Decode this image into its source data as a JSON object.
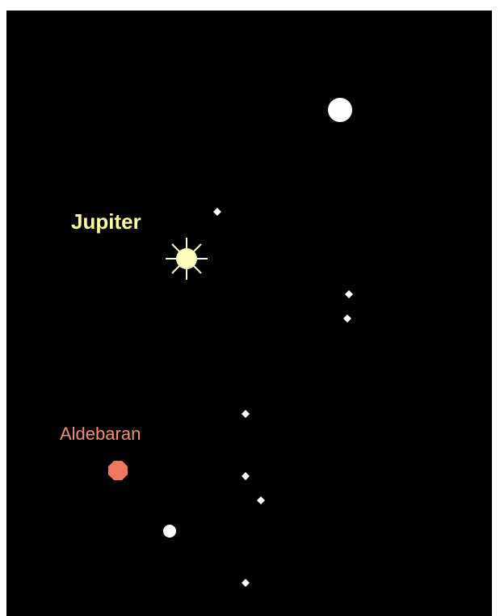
{
  "labels": {
    "jupiter": "Jupiter",
    "aldebaran": "Aldebaran"
  }
}
